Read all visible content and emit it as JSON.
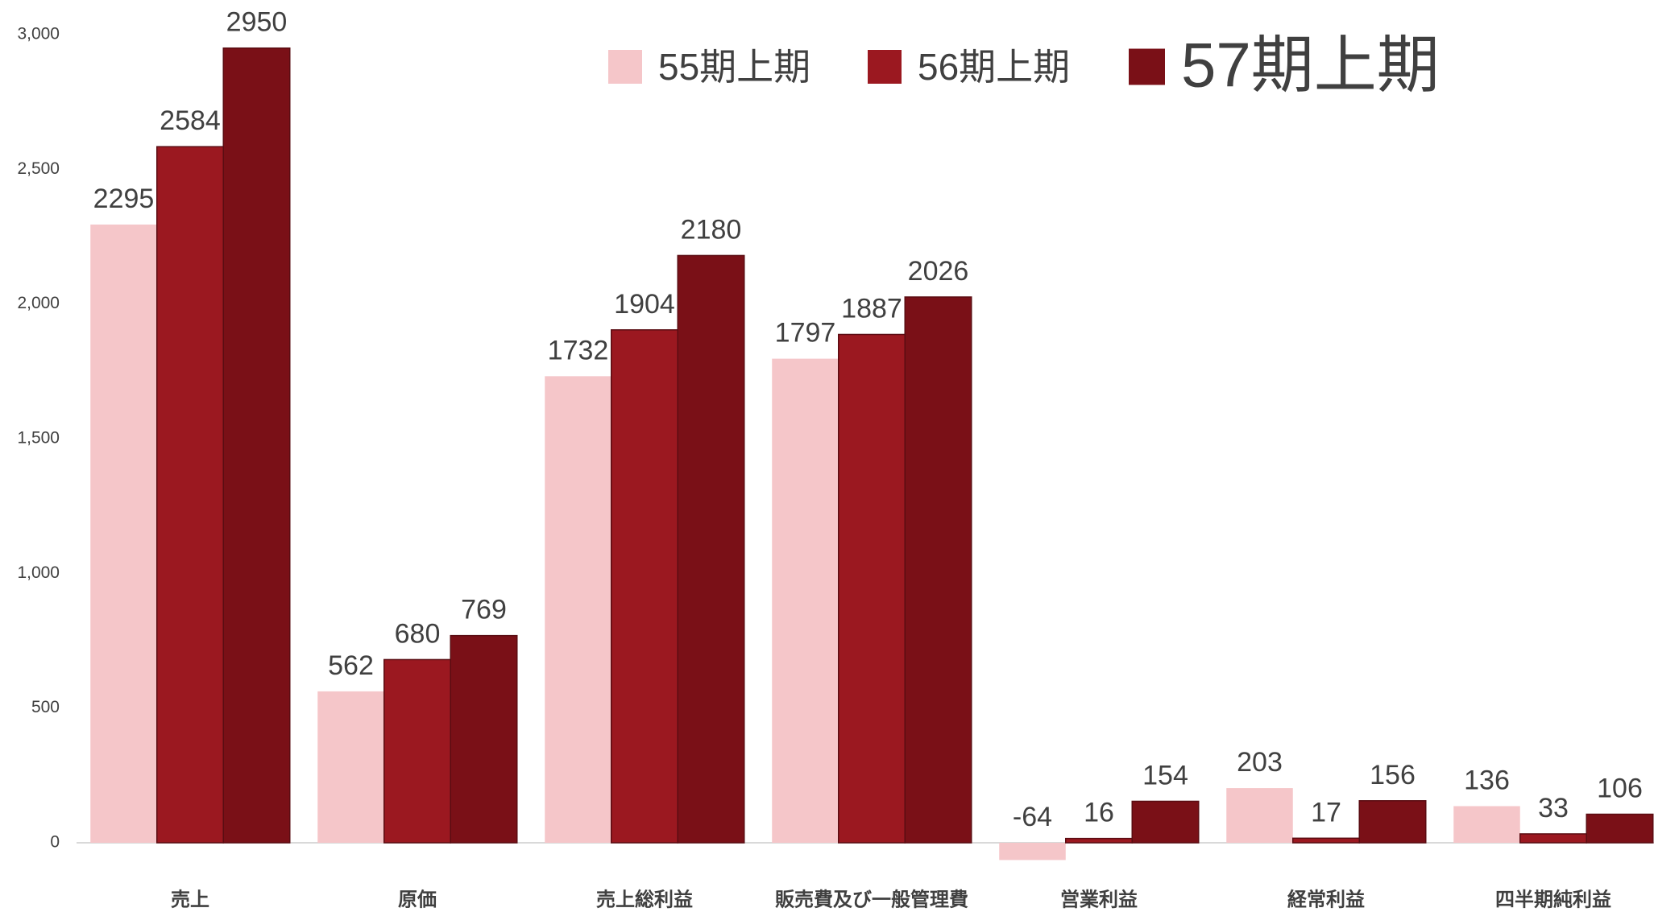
{
  "chart_data": {
    "type": "bar",
    "categories": [
      "売上",
      "原価",
      "売上総利益",
      "販売費及び一般管理費",
      "営業利益",
      "経常利益",
      "四半期純利益"
    ],
    "series": [
      {
        "name": "55期上期",
        "color": "#f5c6c9",
        "values": [
          2295,
          562,
          1732,
          1797,
          -64,
          203,
          136
        ]
      },
      {
        "name": "56期上期",
        "color": "#9b1820",
        "values": [
          2584,
          680,
          1904,
          1887,
          16,
          17,
          33
        ]
      },
      {
        "name": "57期上期",
        "color": "#7a1017",
        "values": [
          2950,
          769,
          2180,
          2026,
          154,
          156,
          106
        ]
      }
    ],
    "ylim": [
      -100,
      3000
    ],
    "yticks": [
      0,
      500,
      {
        "value": 1000,
        "label": "1,000"
      },
      {
        "value": 1500,
        "label": "1,500"
      },
      {
        "value": 2000,
        "label": "2,000"
      },
      {
        "value": 2500,
        "label": "2,500"
      },
      {
        "value": 3000,
        "label": "3,000"
      }
    ],
    "grid": false,
    "legend": "top"
  }
}
